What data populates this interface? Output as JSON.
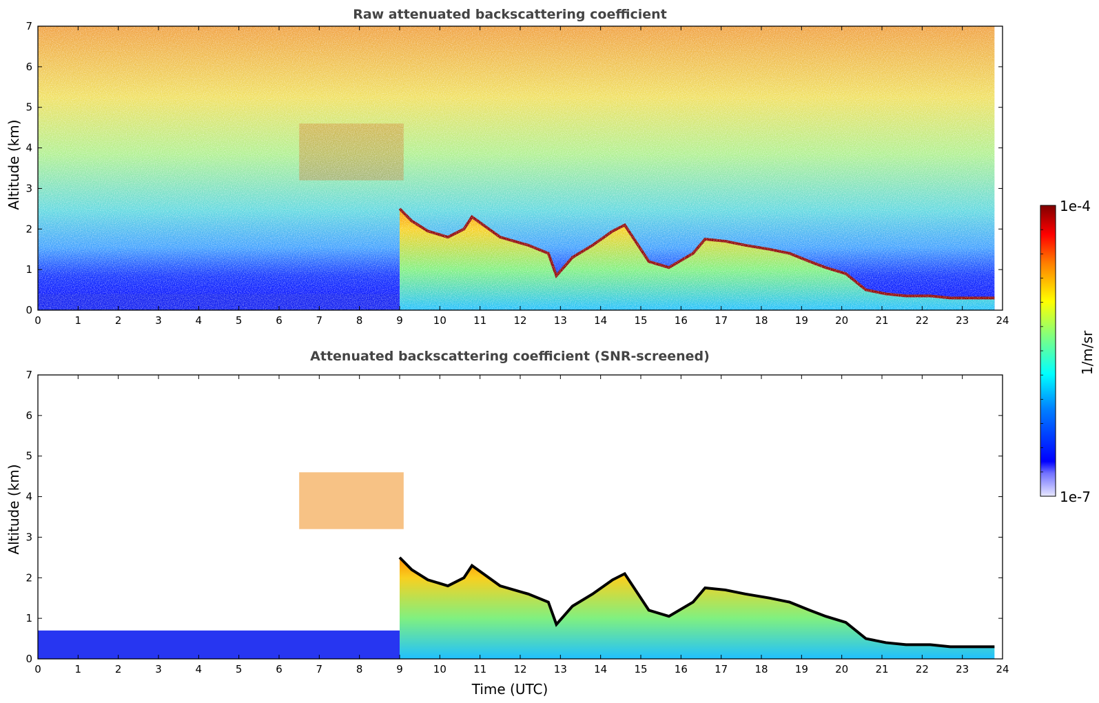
{
  "chart_data": [
    {
      "type": "heatmap",
      "title": "Raw attenuated backscattering coefficient",
      "xlabel": "",
      "ylabel": "Altitude (km)",
      "xlim": [
        0,
        24
      ],
      "ylim": [
        0,
        7
      ],
      "xticks": [
        0,
        1,
        2,
        3,
        4,
        5,
        6,
        7,
        8,
        9,
        10,
        11,
        12,
        13,
        14,
        15,
        16,
        17,
        18,
        19,
        20,
        21,
        22,
        23,
        24
      ],
      "yticks": [
        0,
        1,
        2,
        3,
        4,
        5,
        6,
        7
      ],
      "data_end_time": 23.8,
      "dense_layer_time_range": [
        9.8,
        23.8
      ],
      "cloud_layer_top_km": {
        "x": [
          9.0,
          9.3,
          9.7,
          10.2,
          10.6,
          10.8,
          11.5,
          12.2,
          12.7,
          12.9,
          13.3,
          13.8,
          14.3,
          14.6,
          15.2,
          15.7,
          16.3,
          16.6,
          17.1,
          17.6,
          18.2,
          18.7,
          19.2,
          19.6,
          20.1,
          20.6,
          21.1,
          21.6,
          22.2,
          22.7,
          23.3,
          23.8
        ],
        "y": [
          2.5,
          2.2,
          1.95,
          1.8,
          2.0,
          2.3,
          1.8,
          1.6,
          1.4,
          0.85,
          1.3,
          1.6,
          1.95,
          2.1,
          1.2,
          1.05,
          1.4,
          1.75,
          1.7,
          1.6,
          1.5,
          1.4,
          1.2,
          1.05,
          0.9,
          0.5,
          0.4,
          0.35,
          0.35,
          0.3,
          0.3,
          0.3
        ]
      },
      "elevated_aerosol_layer": {
        "time_range": [
          6.5,
          9.1
        ],
        "altitude_range_km": [
          3.2,
          4.6
        ]
      },
      "aerosol_band_km": [
        0,
        0.4
      ]
    },
    {
      "type": "heatmap",
      "title": "Attenuated backscattering coefficient (SNR-screened)",
      "xlabel": "Time (UTC)",
      "ylabel": "Altitude (km)",
      "xlim": [
        0,
        24
      ],
      "ylim": [
        0,
        7
      ],
      "xticks": [
        0,
        1,
        2,
        3,
        4,
        5,
        6,
        7,
        8,
        9,
        10,
        11,
        12,
        13,
        14,
        15,
        16,
        17,
        18,
        19,
        20,
        21,
        22,
        23,
        24
      ],
      "yticks": [
        0,
        1,
        2,
        3,
        4,
        5,
        6,
        7
      ]
    }
  ],
  "colorbar": {
    "max_label": "1e-4",
    "min_label": "1e-7",
    "unit_label": "1/m/sr",
    "colormap": "jet"
  },
  "colors": {
    "title": "#444444",
    "background": "#ffffff"
  }
}
